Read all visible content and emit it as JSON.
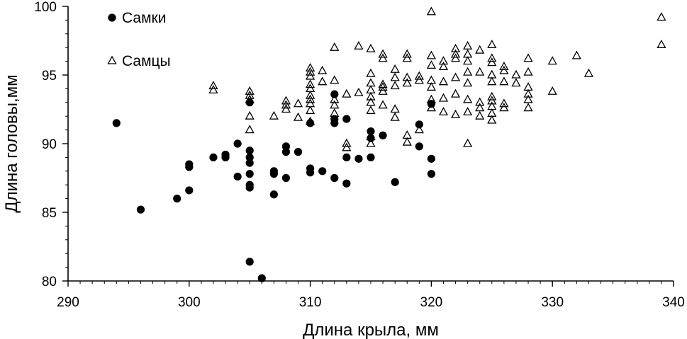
{
  "chart_data": {
    "type": "scatter",
    "title": "",
    "xlabel": "Длина крыла, мм",
    "ylabel": "Длина головы,мм",
    "xlim": [
      290,
      340
    ],
    "ylim": [
      80,
      100
    ],
    "x_ticks": [
      "290",
      "300",
      "310",
      "320",
      "330",
      "340"
    ],
    "y_ticks": [
      "80",
      "85",
      "90",
      "95",
      "100"
    ],
    "grid": false,
    "legend_position": "top-left",
    "series": [
      {
        "name": "Самки",
        "marker": "filled-circle",
        "color": "#000000",
        "points": [
          [
            294,
            91.5
          ],
          [
            296,
            85.2
          ],
          [
            299,
            86
          ],
          [
            300,
            86.6
          ],
          [
            300,
            88.3
          ],
          [
            300,
            88.5
          ],
          [
            302,
            89
          ],
          [
            303,
            89
          ],
          [
            303,
            89.2
          ],
          [
            304,
            87.6
          ],
          [
            304,
            90
          ],
          [
            305,
            81.4
          ],
          [
            305,
            86.8
          ],
          [
            305,
            87
          ],
          [
            305,
            87.8
          ],
          [
            305,
            88.6
          ],
          [
            305,
            89
          ],
          [
            305,
            89.5
          ],
          [
            305,
            93
          ],
          [
            306,
            80.2
          ],
          [
            307,
            86.3
          ],
          [
            307,
            87.8
          ],
          [
            307,
            88
          ],
          [
            308,
            87.5
          ],
          [
            308,
            89.4
          ],
          [
            308,
            89.8
          ],
          [
            309,
            89.4
          ],
          [
            310,
            87.9
          ],
          [
            310,
            88.2
          ],
          [
            310,
            91.5
          ],
          [
            311,
            88
          ],
          [
            312,
            87.5
          ],
          [
            312,
            91.5
          ],
          [
            312,
            91.8
          ],
          [
            312,
            93.6
          ],
          [
            313,
            87.1
          ],
          [
            313,
            89
          ],
          [
            313,
            91.8
          ],
          [
            314,
            88.9
          ],
          [
            315,
            89
          ],
          [
            315,
            90.4
          ],
          [
            315,
            90.9
          ],
          [
            316,
            90.6
          ],
          [
            317,
            87.2
          ],
          [
            319,
            89.8
          ],
          [
            319,
            91.4
          ],
          [
            320,
            87.8
          ],
          [
            320,
            88.9
          ],
          [
            320,
            92.9
          ]
        ]
      },
      {
        "name": "Самцы",
        "marker": "open-triangle",
        "color": "#000000",
        "points": [
          [
            302,
            93.9
          ],
          [
            302,
            94.2
          ],
          [
            305,
            91
          ],
          [
            305,
            92
          ],
          [
            305,
            93.2
          ],
          [
            305,
            93.5
          ],
          [
            305,
            93.8
          ],
          [
            307,
            92
          ],
          [
            308,
            92.5
          ],
          [
            308,
            92.8
          ],
          [
            308,
            93.1
          ],
          [
            309,
            91.9
          ],
          [
            309,
            92.9
          ],
          [
            310,
            91.6
          ],
          [
            310,
            92.4
          ],
          [
            310,
            92.9
          ],
          [
            310,
            93.2
          ],
          [
            310,
            93.5
          ],
          [
            310,
            94
          ],
          [
            310,
            94.3
          ],
          [
            310,
            94.9
          ],
          [
            310,
            95.2
          ],
          [
            310,
            95.5
          ],
          [
            311,
            94.5
          ],
          [
            311,
            95.3
          ],
          [
            312,
            92.2
          ],
          [
            312,
            92.8
          ],
          [
            312,
            93.2
          ],
          [
            312,
            94.6
          ],
          [
            312,
            97
          ],
          [
            313,
            89.7
          ],
          [
            313,
            90
          ],
          [
            313,
            93.6
          ],
          [
            314,
            93.7
          ],
          [
            314,
            97.1
          ],
          [
            315,
            90
          ],
          [
            315,
            90.5
          ],
          [
            315,
            92.4
          ],
          [
            315,
            93
          ],
          [
            315,
            93.4
          ],
          [
            315,
            93.9
          ],
          [
            315,
            94.4
          ],
          [
            315,
            95.1
          ],
          [
            315,
            96.9
          ],
          [
            316,
            92.8
          ],
          [
            316,
            93.8
          ],
          [
            316,
            94.1
          ],
          [
            316,
            94.3
          ],
          [
            316,
            96.2
          ],
          [
            316,
            96.5
          ],
          [
            317,
            91.9
          ],
          [
            317,
            92.5
          ],
          [
            317,
            94.2
          ],
          [
            317,
            94.8
          ],
          [
            317,
            95.4
          ],
          [
            318,
            90.1
          ],
          [
            318,
            90.6
          ],
          [
            318,
            94.4
          ],
          [
            318,
            94.8
          ],
          [
            318,
            96.2
          ],
          [
            318,
            96.5
          ],
          [
            319,
            91
          ],
          [
            319,
            94.6
          ],
          [
            319,
            94.9
          ],
          [
            320,
            92.6
          ],
          [
            320,
            93.2
          ],
          [
            320,
            94.1
          ],
          [
            320,
            94.6
          ],
          [
            320,
            95.7
          ],
          [
            320,
            96.4
          ],
          [
            320,
            99.6
          ],
          [
            321,
            92.3
          ],
          [
            321,
            93.3
          ],
          [
            321,
            94.5
          ],
          [
            321,
            95.6
          ],
          [
            321,
            96
          ],
          [
            322,
            92.1
          ],
          [
            322,
            93.6
          ],
          [
            322,
            94.8
          ],
          [
            322,
            96.2
          ],
          [
            322,
            96.5
          ],
          [
            322,
            96.9
          ],
          [
            323,
            90
          ],
          [
            323,
            92.3
          ],
          [
            323,
            93.2
          ],
          [
            323,
            94.4
          ],
          [
            323,
            95.2
          ],
          [
            323,
            96
          ],
          [
            323,
            96.5
          ],
          [
            323,
            97.1
          ],
          [
            324,
            92
          ],
          [
            324,
            92.6
          ],
          [
            324,
            93
          ],
          [
            324,
            95.2
          ],
          [
            324,
            96.8
          ],
          [
            325,
            91.7
          ],
          [
            325,
            92.2
          ],
          [
            325,
            92.7
          ],
          [
            325,
            93.1
          ],
          [
            325,
            93.4
          ],
          [
            325,
            94.5
          ],
          [
            325,
            95
          ],
          [
            325,
            95.9
          ],
          [
            325,
            96.2
          ],
          [
            325,
            97.2
          ],
          [
            326,
            92.6
          ],
          [
            326,
            92.9
          ],
          [
            326,
            94.5
          ],
          [
            326,
            95.3
          ],
          [
            326,
            95.6
          ],
          [
            327,
            94.4
          ],
          [
            327,
            95
          ],
          [
            328,
            92.6
          ],
          [
            328,
            93.2
          ],
          [
            328,
            93.6
          ],
          [
            328,
            94.1
          ],
          [
            328,
            95.2
          ],
          [
            328,
            96.2
          ],
          [
            330,
            93.8
          ],
          [
            330,
            96
          ],
          [
            332,
            96.4
          ],
          [
            333,
            95.1
          ],
          [
            339,
            97.2
          ],
          [
            339,
            99.2
          ]
        ]
      }
    ]
  }
}
